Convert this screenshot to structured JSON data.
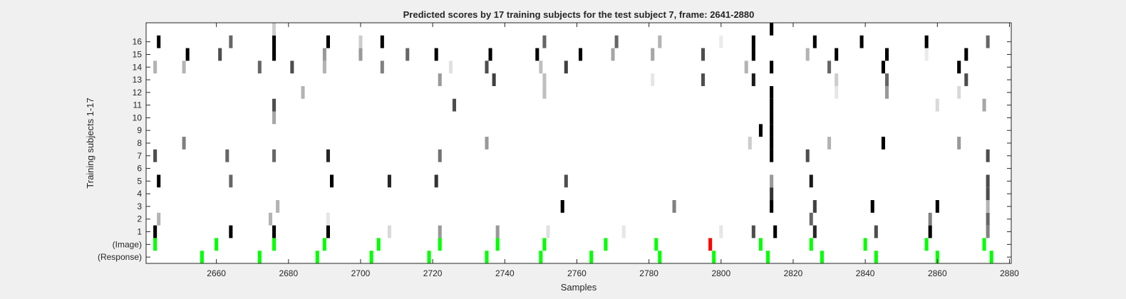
{
  "chart_data": {
    "type": "heatmap",
    "title": "Predicted scores by 17 training subjects for the test subject 7, frame: 2641-2880",
    "xlabel": "Samples",
    "ylabel": "Training subjects 1-17",
    "xlim": [
      2641,
      2880
    ],
    "xticks": [
      2660,
      2680,
      2700,
      2720,
      2740,
      2760,
      2780,
      2800,
      2820,
      2840,
      2860,
      2880
    ],
    "rows": [
      "(Response)",
      "(Image)",
      "1",
      "2",
      "3",
      "4",
      "5",
      "6",
      "7",
      "8",
      "9",
      "10",
      "11",
      "12",
      "13",
      "14",
      "15",
      "16",
      "17"
    ],
    "row_tick_labels": [
      "(Response)",
      "(Image)",
      "1",
      "2",
      "3",
      "4",
      "5",
      "6",
      "7",
      "8",
      "9",
      "10",
      "11",
      "12",
      "13",
      "14",
      "15",
      "16"
    ],
    "grayscale": "0 = white, 1 = black",
    "colors": {
      "image_onset": "#00ff00",
      "response": "#00ff00",
      "highlight": "#ff0000",
      "background": "#ffffff"
    },
    "response_events": [
      2656,
      2672,
      2688,
      2703,
      2719,
      2735,
      2750,
      2764,
      2783,
      2798,
      2813,
      2828,
      2843,
      2860,
      2875
    ],
    "image_events": [
      {
        "x": 2643,
        "color": "green"
      },
      {
        "x": 2660,
        "color": "green"
      },
      {
        "x": 2676,
        "color": "green"
      },
      {
        "x": 2690,
        "color": "green"
      },
      {
        "x": 2705,
        "color": "green"
      },
      {
        "x": 2722,
        "color": "green"
      },
      {
        "x": 2738,
        "color": "green"
      },
      {
        "x": 2751,
        "color": "green"
      },
      {
        "x": 2768,
        "color": "green"
      },
      {
        "x": 2782,
        "color": "green"
      },
      {
        "x": 2797,
        "color": "red"
      },
      {
        "x": 2811,
        "color": "green"
      },
      {
        "x": 2825,
        "color": "green"
      },
      {
        "x": 2840,
        "color": "green"
      },
      {
        "x": 2857,
        "color": "green"
      },
      {
        "x": 2873,
        "color": "green"
      }
    ],
    "subject_scores": [
      {
        "subject": 1,
        "cells": [
          [
            2643,
            1.0
          ],
          [
            2664,
            1.0
          ],
          [
            2676,
            1.0
          ],
          [
            2691,
            1.0
          ],
          [
            2708,
            0.15
          ],
          [
            2722,
            0.4
          ],
          [
            2738,
            0.4
          ],
          [
            2752,
            0.12
          ],
          [
            2773,
            0.1
          ],
          [
            2800,
            0.1
          ],
          [
            2809,
            0.7
          ],
          [
            2815,
            1.0
          ],
          [
            2826,
            0.85
          ],
          [
            2843,
            0.7
          ],
          [
            2858,
            1.0
          ],
          [
            2874,
            0.5
          ]
        ]
      },
      {
        "subject": 2,
        "cells": [
          [
            2644,
            0.3
          ],
          [
            2675,
            0.3
          ],
          [
            2691,
            0.1
          ],
          [
            2825,
            0.6
          ],
          [
            2858,
            0.5
          ],
          [
            2874,
            0.6
          ]
        ]
      },
      {
        "subject": 3,
        "cells": [
          [
            2677,
            0.3
          ],
          [
            2756,
            1.0
          ],
          [
            2787,
            0.5
          ],
          [
            2814,
            1.0
          ],
          [
            2826,
            0.75
          ],
          [
            2842,
            1.0
          ],
          [
            2860,
            1.0
          ],
          [
            2874,
            0.3
          ]
        ]
      },
      {
        "subject": 4,
        "cells": [
          [
            2814,
            0.8
          ],
          [
            2874,
            0.7
          ]
        ]
      },
      {
        "subject": 5,
        "cells": [
          [
            2644,
            1.0
          ],
          [
            2664,
            0.6
          ],
          [
            2692,
            1.0
          ],
          [
            2708,
            0.85
          ],
          [
            2721,
            0.8
          ],
          [
            2757,
            0.7
          ],
          [
            2814,
            0.4
          ],
          [
            2825,
            0.9
          ],
          [
            2874,
            0.7
          ]
        ]
      },
      {
        "subject": 7,
        "cells": [
          [
            2643,
            0.7
          ],
          [
            2663,
            0.6
          ],
          [
            2676,
            0.6
          ],
          [
            2691,
            0.85
          ],
          [
            2722,
            0.55
          ],
          [
            2814,
            1.0
          ],
          [
            2824,
            0.7
          ],
          [
            2874,
            0.7
          ]
        ]
      },
      {
        "subject": 8,
        "cells": [
          [
            2651,
            0.5
          ],
          [
            2735,
            0.4
          ],
          [
            2808,
            0.2
          ],
          [
            2814,
            1.0
          ],
          [
            2830,
            0.3
          ],
          [
            2845,
            1.0
          ],
          [
            2866,
            0.4
          ]
        ]
      },
      {
        "subject": 9,
        "cells": [
          [
            2811,
            1.0
          ],
          [
            2814,
            1.0
          ]
        ]
      },
      {
        "subject": 10,
        "cells": [
          [
            2676,
            0.35
          ],
          [
            2814,
            1.0
          ]
        ]
      },
      {
        "subject": 11,
        "cells": [
          [
            2676,
            0.7
          ],
          [
            2726,
            0.7
          ],
          [
            2814,
            1.0
          ],
          [
            2860,
            0.15
          ],
          [
            2873,
            0.35
          ]
        ]
      },
      {
        "subject": 12,
        "cells": [
          [
            2684,
            0.3
          ],
          [
            2751,
            0.25
          ],
          [
            2814,
            1.0
          ],
          [
            2832,
            0.1
          ],
          [
            2846,
            0.4
          ],
          [
            2866,
            0.15
          ]
        ]
      },
      {
        "subject": 13,
        "cells": [
          [
            2722,
            0.4
          ],
          [
            2737,
            0.75
          ],
          [
            2751,
            0.25
          ],
          [
            2781,
            0.1
          ],
          [
            2795,
            0.7
          ],
          [
            2809,
            0.9
          ],
          [
            2832,
            0.2
          ],
          [
            2846,
            0.6
          ],
          [
            2868,
            0.7
          ]
        ]
      },
      {
        "subject": 14,
        "cells": [
          [
            2643,
            0.3
          ],
          [
            2651,
            0.3
          ],
          [
            2672,
            0.6
          ],
          [
            2681,
            0.7
          ],
          [
            2690,
            0.3
          ],
          [
            2706,
            0.5
          ],
          [
            2725,
            0.12
          ],
          [
            2735,
            0.7
          ],
          [
            2750,
            0.25
          ],
          [
            2757,
            0.75
          ],
          [
            2807,
            0.3
          ],
          [
            2814,
            1.0
          ],
          [
            2830,
            0.6
          ],
          [
            2845,
            1.0
          ],
          [
            2866,
            1.0
          ]
        ]
      },
      {
        "subject": 15,
        "cells": [
          [
            2652,
            1.0
          ],
          [
            2661,
            0.7
          ],
          [
            2676,
            1.0
          ],
          [
            2690,
            0.4
          ],
          [
            2700,
            0.4
          ],
          [
            2713,
            0.6
          ],
          [
            2721,
            1.0
          ],
          [
            2736,
            1.0
          ],
          [
            2749,
            1.0
          ],
          [
            2761,
            1.0
          ],
          [
            2770,
            0.35
          ],
          [
            2781,
            0.35
          ],
          [
            2795,
            0.7
          ],
          [
            2809,
            1.0
          ],
          [
            2824,
            0.3
          ],
          [
            2832,
            1.0
          ],
          [
            2846,
            1.0
          ],
          [
            2857,
            0.08
          ],
          [
            2868,
            1.0
          ]
        ]
      },
      {
        "subject": 16,
        "cells": [
          [
            2644,
            1.0
          ],
          [
            2664,
            0.6
          ],
          [
            2676,
            1.0
          ],
          [
            2691,
            1.0
          ],
          [
            2700,
            0.2
          ],
          [
            2706,
            1.0
          ],
          [
            2751,
            0.6
          ],
          [
            2771,
            0.6
          ],
          [
            2783,
            0.3
          ],
          [
            2800,
            0.08
          ],
          [
            2809,
            1.0
          ],
          [
            2826,
            1.0
          ],
          [
            2839,
            1.0
          ],
          [
            2857,
            1.0
          ],
          [
            2874,
            0.6
          ]
        ]
      },
      {
        "subject": 17,
        "cells": [
          [
            2676,
            0.2
          ],
          [
            2814,
            1.0
          ]
        ]
      }
    ]
  }
}
